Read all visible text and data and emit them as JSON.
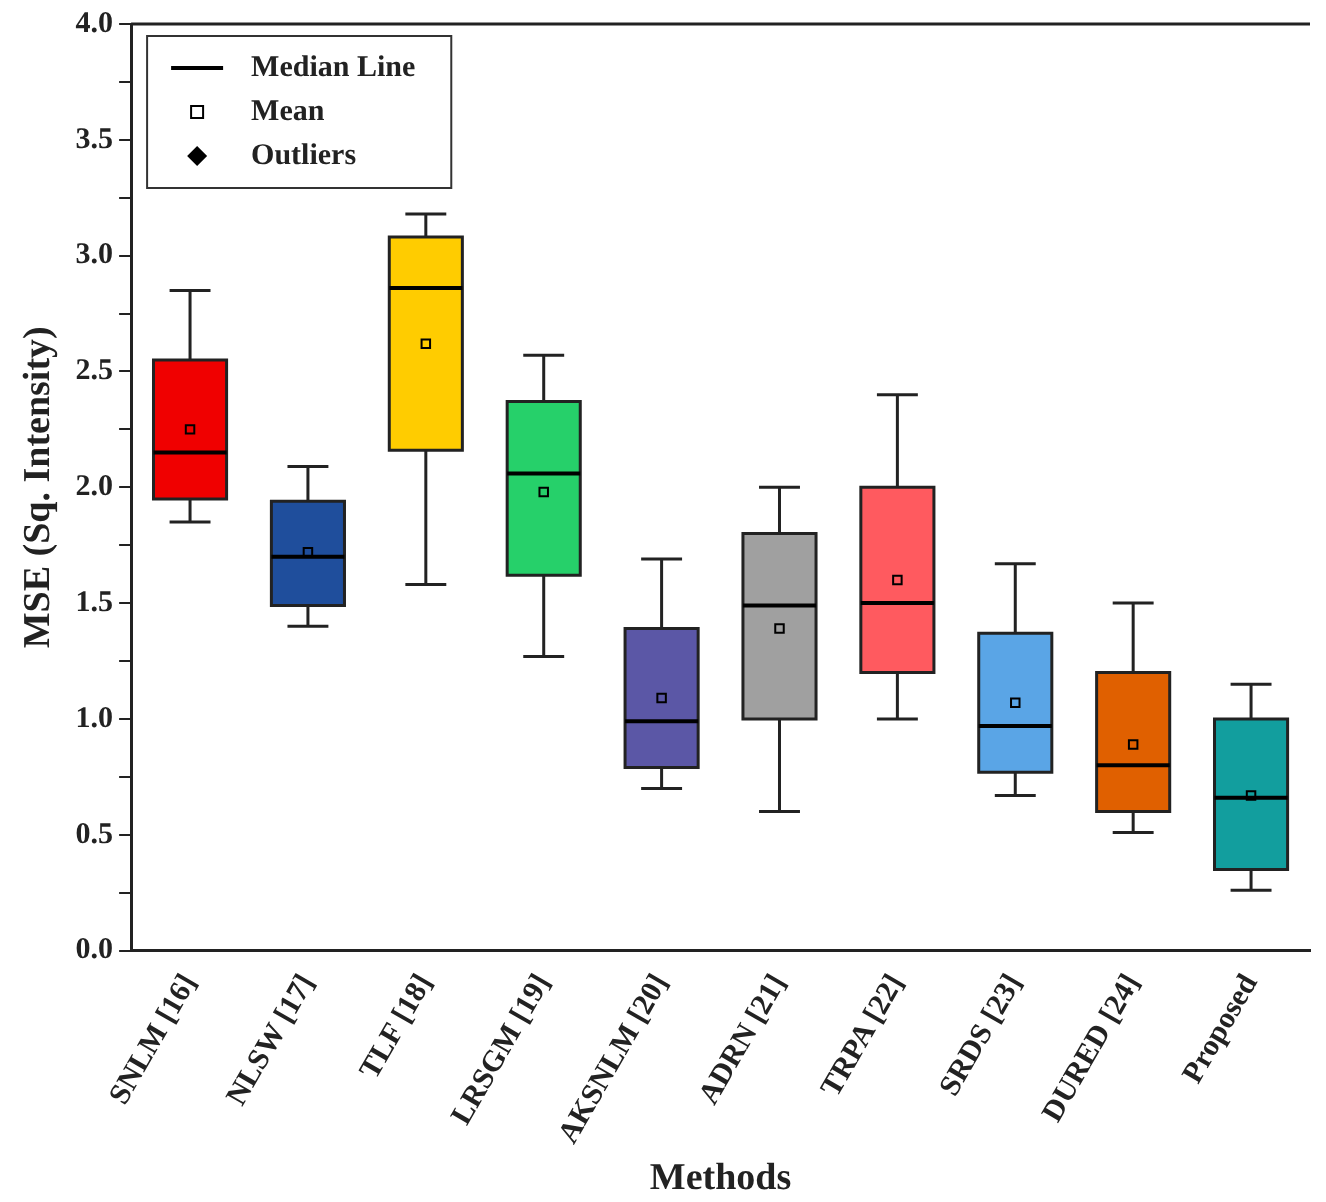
{
  "chart_data": {
    "type": "box",
    "xlabel": "Methods",
    "ylabel": "MSE (Sq. Intensity)",
    "categories": [
      "SNLM [16]",
      "NLSW [17]",
      "TLF [18]",
      "LRSGM [19]",
      "AKSNLM [20]",
      "ADRN [21]",
      "TRPA [22]",
      "SRDS [23]",
      "DURED [24]",
      "Proposed"
    ],
    "ylim": [
      0,
      4
    ],
    "yticks": [
      {
        "value": 0,
        "label": "0.0"
      },
      {
        "value": 0.25,
        "label": null
      },
      0.5,
      {
        "value": 0.75,
        "label": null
      },
      {
        "value": 1,
        "label": "1.0"
      },
      {
        "value": 1.25,
        "label": null
      },
      1.5,
      {
        "value": 1.75,
        "label": null
      },
      {
        "value": 2,
        "label": "2.0"
      },
      {
        "value": 2.25,
        "label": null
      },
      2.5,
      {
        "value": 2.75,
        "label": null
      },
      {
        "value": 3,
        "label": "3.0"
      },
      {
        "value": 3.25,
        "label": null
      },
      3.5,
      {
        "value": 3.75,
        "label": null
      },
      {
        "value": 4,
        "label": "4.0"
      }
    ],
    "grid": false,
    "legend": "top left",
    "annotations": [
      "Median Line"
    ],
    "series": [
      {
        "colors": [
          "#f00000",
          "#1f4e9c",
          "#ffcc00",
          "#26d06a",
          "#5b57a6",
          "#a0a0a0",
          "#ff5a5f",
          "#5aa5e6",
          "#e06000",
          "#129e9e"
        ],
        "boxes": [
          {
            "low": 1.85,
            "q1": 1.95,
            "median": 2.15,
            "q3": 2.55,
            "high": 2.85
          },
          {
            "low": 1.4,
            "q1": 1.49,
            "median": 1.7,
            "q3": 1.94,
            "high": 2.09
          },
          {
            "low": 1.58,
            "q1": 2.16,
            "median": 2.86,
            "q3": 3.08,
            "high": 3.18
          },
          {
            "low": 1.27,
            "q1": 1.62,
            "median": 2.06,
            "q3": 2.37,
            "high": 2.57
          },
          {
            "low": 0.7,
            "q1": 0.79,
            "median": 0.99,
            "q3": 1.39,
            "high": 1.69
          },
          {
            "low": 0.6,
            "q1": 1.0,
            "median": 1.49,
            "q3": 1.8,
            "high": 2.0
          },
          {
            "low": 1.0,
            "q1": 1.2,
            "median": 1.5,
            "q3": 2.0,
            "high": 2.4
          },
          {
            "low": 0.67,
            "q1": 0.77,
            "median": 0.97,
            "q3": 1.37,
            "high": 1.67
          },
          {
            "low": 0.51,
            "q1": 0.6,
            "median": 0.8,
            "q3": 1.2,
            "high": 1.5
          },
          {
            "low": 0.26,
            "q1": 0.35,
            "median": 0.66,
            "q3": 1.0,
            "high": 1.15
          }
        ]
      },
      {
        "type": "scatter",
        "name": "Mean",
        "marker": "square",
        "color": "#000000",
        "values": [
          2.25,
          1.72,
          2.62,
          1.98,
          1.09,
          1.39,
          1.6,
          1.07,
          0.89,
          0.67
        ]
      },
      {
        "type": "scatter",
        "name": "Outliers",
        "marker": "diamond",
        "color": "#000000",
        "values": [
          null,
          null,
          null,
          null,
          null,
          null,
          null,
          null,
          null,
          null
        ]
      }
    ]
  }
}
